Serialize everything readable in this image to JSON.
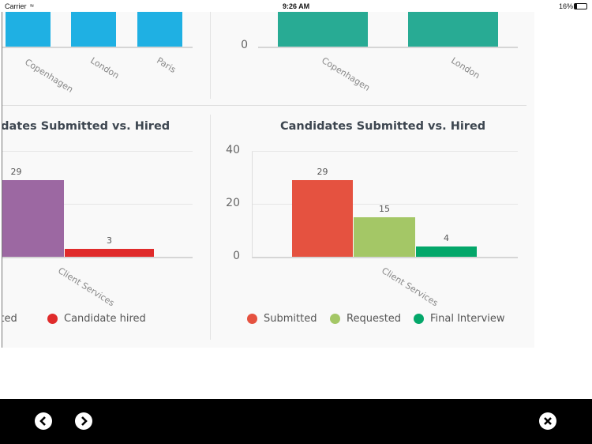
{
  "status_bar": {
    "carrier": "Carrier",
    "time": "9:26 AM",
    "battery": "16%"
  },
  "colors": {
    "blue": "#1fb0e3",
    "teal": "#28ab94",
    "purple": "#9c68a2",
    "red_hired": "#e02b2b",
    "submitted": "#e55240",
    "requested": "#a4c766",
    "final_interview": "#04a76a"
  },
  "chart_data": [
    {
      "type": "bar",
      "title": "",
      "categories": [
        "Copenhagen",
        "London",
        "Paris"
      ],
      "color": "#1fb0e3",
      "values_note": "bars clipped above view"
    },
    {
      "type": "bar",
      "title": "",
      "categories": [
        "Copenhagen",
        "London"
      ],
      "yticks": [
        "0"
      ],
      "color": "#28ab94"
    },
    {
      "type": "bar",
      "title": "Candidates Submitted vs. Hired",
      "categories": [
        "Client Services"
      ],
      "ylim": [
        0,
        40
      ],
      "series": [
        {
          "name": "Candidate submitted",
          "values": [
            29
          ],
          "color": "#9c68a2"
        },
        {
          "name": "Candidate hired",
          "values": [
            3
          ],
          "color": "#e02b2b"
        }
      ],
      "legend_visible": [
        "mitted",
        "Candidate hired"
      ]
    },
    {
      "type": "bar",
      "title": "Candidates Submitted vs. Hired",
      "categories": [
        "Client Services"
      ],
      "ylim": [
        0,
        40
      ],
      "yticks": [
        "0",
        "20",
        "40"
      ],
      "series": [
        {
          "name": "Submitted",
          "values": [
            29
          ],
          "color": "#e55240"
        },
        {
          "name": "Requested",
          "values": [
            15
          ],
          "color": "#a4c766"
        },
        {
          "name": "Final Interview",
          "values": [
            4
          ],
          "color": "#04a76a"
        }
      ]
    }
  ],
  "toolbar": {
    "prev_icon": "chevron-left-circle",
    "next_icon": "chevron-right-circle",
    "close_icon": "close-circle"
  }
}
